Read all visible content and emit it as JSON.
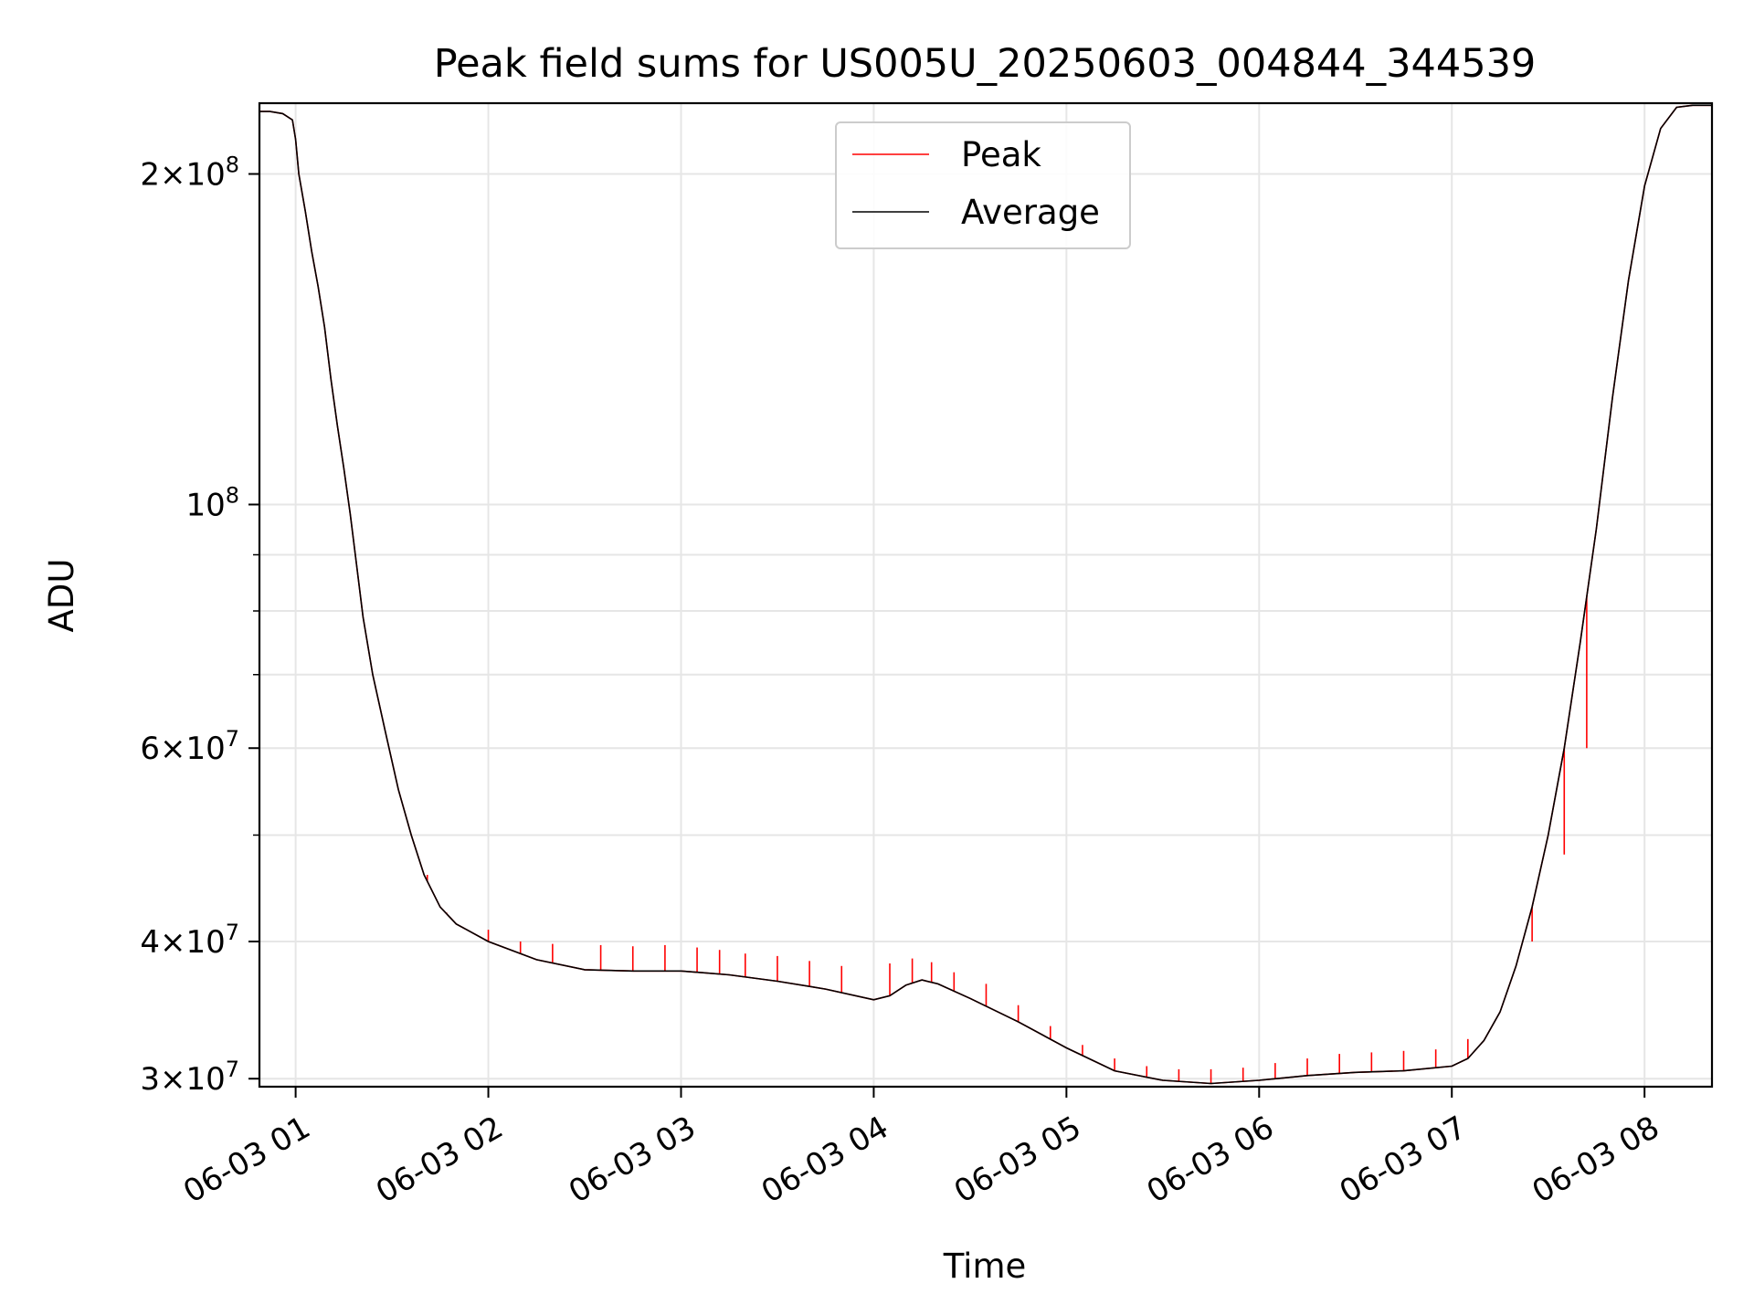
{
  "chart_data": {
    "type": "line",
    "title": "Peak field sums for US005U_20250603_004844_344539",
    "xlabel": "Time",
    "ylabel": "ADU",
    "y_scale": "log",
    "ylim": [
      29500000,
      232000000
    ],
    "xlim": [
      "06-03 00:48:44",
      "06-03 08:21:00"
    ],
    "grid": true,
    "legend_position": "upper center",
    "x_ticks": [
      {
        "value": "06-03 01:00",
        "label": "06-03 01"
      },
      {
        "value": "06-03 02:00",
        "label": "06-03 02"
      },
      {
        "value": "06-03 03:00",
        "label": "06-03 03"
      },
      {
        "value": "06-03 04:00",
        "label": "06-03 04"
      },
      {
        "value": "06-03 05:00",
        "label": "06-03 05"
      },
      {
        "value": "06-03 06:00",
        "label": "06-03 06"
      },
      {
        "value": "06-03 07:00",
        "label": "06-03 07"
      },
      {
        "value": "06-03 08:00",
        "label": "06-03 08"
      }
    ],
    "y_ticks": [
      {
        "value": 30000000,
        "mantissa": "3",
        "exponent": "7"
      },
      {
        "value": 40000000,
        "mantissa": "4",
        "exponent": "7"
      },
      {
        "value": 60000000,
        "mantissa": "6",
        "exponent": "7"
      },
      {
        "value": 100000000,
        "mantissa": "",
        "exponent": "8"
      },
      {
        "value": 200000000,
        "mantissa": "2",
        "exponent": "8"
      }
    ],
    "y_minor_ticks": [
      50000000,
      70000000,
      80000000,
      90000000
    ],
    "series": [
      {
        "name": "Peak",
        "color": "#ff0000",
        "spikes": [
          [
            "06-03 01:41",
            46000000
          ],
          [
            "06-03 01:47",
            42500000
          ],
          [
            "06-03 02:00",
            41000000
          ],
          [
            "06-03 02:10",
            40000000
          ],
          [
            "06-03 02:20",
            39800000
          ],
          [
            "06-03 02:35",
            39700000
          ],
          [
            "06-03 02:45",
            39600000
          ],
          [
            "06-03 02:55",
            39700000
          ],
          [
            "06-03 03:05",
            39500000
          ],
          [
            "06-03 03:12",
            39300000
          ],
          [
            "06-03 03:20",
            39000000
          ],
          [
            "06-03 03:30",
            38800000
          ],
          [
            "06-03 03:40",
            38400000
          ],
          [
            "06-03 03:50",
            38000000
          ],
          [
            "06-03 04:05",
            38200000
          ],
          [
            "06-03 04:12",
            38600000
          ],
          [
            "06-03 04:18",
            38300000
          ],
          [
            "06-03 04:25",
            37500000
          ],
          [
            "06-03 04:35",
            36600000
          ],
          [
            "06-03 04:45",
            35000000
          ],
          [
            "06-03 04:55",
            33500000
          ],
          [
            "06-03 05:05",
            32200000
          ],
          [
            "06-03 05:15",
            31300000
          ],
          [
            "06-03 05:25",
            30800000
          ],
          [
            "06-03 05:35",
            30600000
          ],
          [
            "06-03 05:45",
            30600000
          ],
          [
            "06-03 05:55",
            30700000
          ],
          [
            "06-03 06:05",
            31000000
          ],
          [
            "06-03 06:15",
            31300000
          ],
          [
            "06-03 06:25",
            31600000
          ],
          [
            "06-03 06:35",
            31700000
          ],
          [
            "06-03 06:45",
            31800000
          ],
          [
            "06-03 06:55",
            31900000
          ],
          [
            "06-03 07:05",
            32600000
          ],
          [
            "06-03 07:15",
            34500000
          ],
          [
            "06-03 07:25",
            40000000
          ],
          [
            "06-03 07:35",
            48000000
          ],
          [
            "06-03 07:42",
            60000000
          ]
        ]
      },
      {
        "name": "Average",
        "color": "#000000",
        "points": [
          [
            "06-03 00:48:44",
            228000000
          ],
          [
            "06-03 00:52",
            228000000
          ],
          [
            "06-03 00:56",
            227000000
          ],
          [
            "06-03 00:59",
            224000000
          ],
          [
            "06-03 01:00",
            215000000
          ],
          [
            "06-03 01:01",
            200000000
          ],
          [
            "06-03 01:03",
            185000000
          ],
          [
            "06-03 01:05",
            170000000
          ],
          [
            "06-03 01:07",
            158000000
          ],
          [
            "06-03 01:09",
            145000000
          ],
          [
            "06-03 01:11",
            130000000
          ],
          [
            "06-03 01:13",
            118000000
          ],
          [
            "06-03 01:15",
            108000000
          ],
          [
            "06-03 01:17",
            98000000
          ],
          [
            "06-03 01:19",
            88000000
          ],
          [
            "06-03 01:21",
            79000000
          ],
          [
            "06-03 01:24",
            70000000
          ],
          [
            "06-03 01:28",
            62000000
          ],
          [
            "06-03 01:32",
            55000000
          ],
          [
            "06-03 01:36",
            50000000
          ],
          [
            "06-03 01:40",
            46000000
          ],
          [
            "06-03 01:45",
            43000000
          ],
          [
            "06-03 01:50",
            41500000
          ],
          [
            "06-03 02:00",
            40000000
          ],
          [
            "06-03 02:15",
            38500000
          ],
          [
            "06-03 02:30",
            37700000
          ],
          [
            "06-03 02:45",
            37600000
          ],
          [
            "06-03 03:00",
            37600000
          ],
          [
            "06-03 03:15",
            37300000
          ],
          [
            "06-03 03:30",
            36800000
          ],
          [
            "06-03 03:45",
            36200000
          ],
          [
            "06-03 04:00",
            35400000
          ],
          [
            "06-03 04:05",
            35700000
          ],
          [
            "06-03 04:10",
            36500000
          ],
          [
            "06-03 04:15",
            36900000
          ],
          [
            "06-03 04:20",
            36600000
          ],
          [
            "06-03 04:30",
            35500000
          ],
          [
            "06-03 04:45",
            33800000
          ],
          [
            "06-03 05:00",
            32000000
          ],
          [
            "06-03 05:15",
            30500000
          ],
          [
            "06-03 05:30",
            29900000
          ],
          [
            "06-03 05:45",
            29700000
          ],
          [
            "06-03 06:00",
            29900000
          ],
          [
            "06-03 06:15",
            30200000
          ],
          [
            "06-03 06:30",
            30400000
          ],
          [
            "06-03 06:45",
            30500000
          ],
          [
            "06-03 07:00",
            30800000
          ],
          [
            "06-03 07:05",
            31300000
          ],
          [
            "06-03 07:10",
            32500000
          ],
          [
            "06-03 07:15",
            34500000
          ],
          [
            "06-03 07:20",
            38000000
          ],
          [
            "06-03 07:25",
            43000000
          ],
          [
            "06-03 07:30",
            50000000
          ],
          [
            "06-03 07:35",
            60000000
          ],
          [
            "06-03 07:40",
            75000000
          ],
          [
            "06-03 07:45",
            95000000
          ],
          [
            "06-03 07:50",
            125000000
          ],
          [
            "06-03 07:55",
            160000000
          ],
          [
            "06-03 08:00",
            195000000
          ],
          [
            "06-03 08:05",
            220000000
          ],
          [
            "06-03 08:10",
            230000000
          ],
          [
            "06-03 08:15",
            231000000
          ],
          [
            "06-03 08:21",
            231000000
          ]
        ]
      }
    ]
  }
}
